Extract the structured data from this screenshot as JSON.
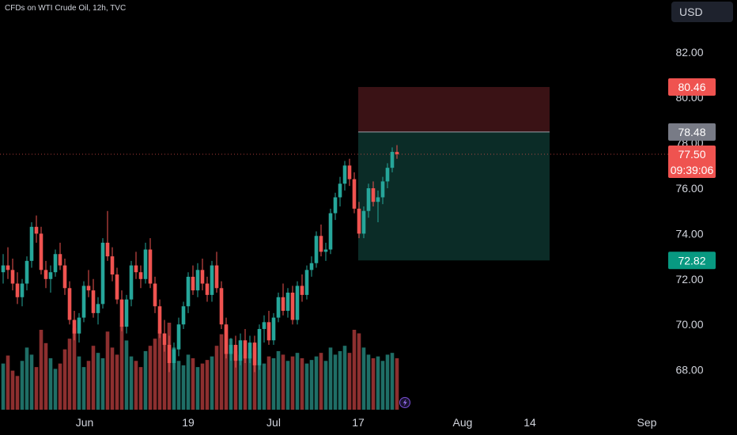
{
  "header": {
    "symbol_title": "CFDs on WTI Crude Oil, 12h, TVC",
    "currency": "USD"
  },
  "colors": {
    "background": "#000000",
    "up": "#26a69a",
    "down": "#ef5350",
    "volume_up": "#1f6e66",
    "volume_down": "#8d2f2f",
    "stop_zone": "#3a1215",
    "target_zone": "#0b2c27",
    "axis_text": "#d1d4dc",
    "entry_tag": "#787b86"
  },
  "chart_data": {
    "type": "candlestick",
    "y_axis": {
      "ticks": [
        "82.00",
        "80.00",
        "78.00",
        "76.00",
        "74.00",
        "72.00",
        "70.00",
        "68.00"
      ],
      "range": [
        66.6,
        84.4
      ]
    },
    "x_axis": {
      "ticks": [
        "Jun",
        "19",
        "Jul",
        "17",
        "Aug",
        "14",
        "Sep"
      ]
    },
    "price_labels": {
      "stop_loss": "80.46",
      "entry": "78.48",
      "last_price": "77.50",
      "countdown": "09:39:06",
      "take_profit": "72.82"
    },
    "position": {
      "stop_loss": 80.46,
      "entry": 78.48,
      "take_profit": 72.82,
      "last_price": 77.5
    },
    "candles": [
      [
        72.3,
        73.1,
        71.8,
        72.6
      ],
      [
        72.6,
        73.4,
        72.0,
        72.4
      ],
      [
        72.4,
        72.9,
        71.5,
        71.8
      ],
      [
        71.8,
        72.3,
        70.9,
        71.2
      ],
      [
        71.2,
        72.0,
        70.8,
        71.8
      ],
      [
        71.8,
        73.0,
        71.5,
        72.8
      ],
      [
        72.8,
        74.5,
        72.5,
        74.3
      ],
      [
        74.3,
        74.8,
        73.6,
        74.0
      ],
      [
        74.0,
        74.3,
        72.2,
        72.4
      ],
      [
        72.4,
        72.8,
        71.6,
        72.0
      ],
      [
        72.0,
        72.6,
        71.4,
        72.3
      ],
      [
        72.3,
        73.3,
        72.1,
        73.1
      ],
      [
        73.1,
        73.6,
        72.4,
        72.6
      ],
      [
        72.6,
        72.9,
        71.3,
        71.6
      ],
      [
        71.6,
        71.9,
        70.0,
        70.2
      ],
      [
        70.2,
        70.6,
        69.3,
        69.6
      ],
      [
        69.6,
        70.5,
        69.2,
        70.3
      ],
      [
        70.3,
        71.9,
        70.1,
        71.7
      ],
      [
        71.7,
        72.4,
        71.2,
        71.5
      ],
      [
        71.5,
        72.0,
        70.3,
        70.5
      ],
      [
        70.5,
        71.2,
        70.0,
        70.9
      ],
      [
        70.9,
        73.8,
        70.7,
        73.6
      ],
      [
        73.6,
        75.0,
        72.8,
        73.0
      ],
      [
        73.0,
        73.4,
        71.9,
        72.2
      ],
      [
        72.2,
        72.5,
        70.9,
        71.1
      ],
      [
        71.1,
        71.5,
        69.7,
        69.9
      ],
      [
        69.9,
        71.3,
        69.6,
        71.1
      ],
      [
        71.1,
        72.8,
        70.8,
        72.6
      ],
      [
        72.6,
        73.2,
        72.0,
        72.3
      ],
      [
        72.3,
        72.6,
        71.6,
        72.0
      ],
      [
        72.0,
        73.6,
        71.8,
        73.3
      ],
      [
        73.3,
        73.8,
        71.6,
        71.8
      ],
      [
        71.8,
        72.1,
        70.5,
        70.8
      ],
      [
        70.8,
        71.1,
        69.4,
        69.6
      ],
      [
        69.6,
        70.2,
        68.8,
        69.1
      ],
      [
        69.1,
        69.5,
        67.9,
        68.3
      ],
      [
        68.3,
        69.2,
        68.0,
        68.9
      ],
      [
        68.9,
        70.3,
        68.6,
        70.0
      ],
      [
        70.0,
        71.0,
        69.8,
        70.8
      ],
      [
        70.8,
        72.3,
        70.5,
        72.1
      ],
      [
        72.1,
        72.6,
        71.3,
        71.5
      ],
      [
        71.5,
        72.7,
        71.2,
        72.4
      ],
      [
        72.4,
        72.9,
        71.5,
        71.8
      ],
      [
        71.8,
        72.1,
        71.0,
        71.3
      ],
      [
        71.3,
        72.8,
        71.0,
        72.6
      ],
      [
        72.6,
        73.2,
        71.4,
        71.6
      ],
      [
        71.6,
        71.9,
        69.8,
        70.0
      ],
      [
        70.0,
        70.3,
        68.5,
        68.7
      ],
      [
        68.7,
        69.4,
        68.4,
        69.1
      ],
      [
        69.1,
        69.5,
        68.1,
        68.4
      ],
      [
        68.4,
        69.6,
        68.2,
        69.3
      ],
      [
        69.3,
        69.8,
        68.3,
        68.5
      ],
      [
        68.5,
        69.5,
        68.3,
        69.2
      ],
      [
        69.2,
        69.5,
        67.9,
        68.2
      ],
      [
        68.2,
        70.0,
        68.0,
        69.8
      ],
      [
        69.8,
        70.4,
        69.2,
        70.1
      ],
      [
        70.1,
        70.6,
        69.1,
        69.3
      ],
      [
        69.3,
        70.5,
        69.1,
        70.3
      ],
      [
        70.3,
        71.4,
        70.1,
        71.2
      ],
      [
        71.2,
        71.8,
        70.4,
        70.6
      ],
      [
        70.6,
        71.6,
        70.3,
        71.4
      ],
      [
        71.4,
        71.7,
        70.0,
        70.2
      ],
      [
        70.2,
        71.9,
        70.0,
        71.7
      ],
      [
        71.7,
        72.2,
        71.0,
        71.3
      ],
      [
        71.3,
        72.6,
        71.1,
        72.4
      ],
      [
        72.4,
        73.0,
        72.1,
        72.7
      ],
      [
        72.7,
        74.1,
        72.5,
        73.9
      ],
      [
        73.9,
        74.4,
        73.0,
        73.2
      ],
      [
        73.2,
        73.6,
        72.8,
        73.3
      ],
      [
        73.3,
        75.1,
        73.1,
        74.9
      ],
      [
        74.9,
        75.8,
        74.6,
        75.6
      ],
      [
        75.6,
        76.5,
        75.2,
        76.2
      ],
      [
        76.2,
        77.2,
        75.9,
        77.0
      ],
      [
        77.0,
        77.3,
        76.1,
        76.4
      ],
      [
        76.4,
        76.7,
        74.9,
        75.1
      ],
      [
        75.1,
        75.4,
        73.8,
        74.0
      ],
      [
        74.0,
        75.2,
        73.8,
        75.0
      ],
      [
        75.0,
        76.2,
        74.7,
        76.0
      ],
      [
        76.0,
        76.3,
        75.2,
        75.4
      ],
      [
        75.4,
        75.9,
        74.5,
        75.6
      ],
      [
        75.6,
        76.5,
        75.3,
        76.3
      ],
      [
        76.3,
        77.1,
        76.0,
        76.9
      ],
      [
        76.9,
        77.8,
        76.7,
        77.6
      ],
      [
        77.6,
        77.9,
        77.3,
        77.5
      ]
    ],
    "volume": [
      52,
      61,
      44,
      38,
      55,
      70,
      62,
      48,
      90,
      75,
      58,
      46,
      52,
      68,
      80,
      92,
      60,
      48,
      55,
      72,
      64,
      58,
      88,
      70,
      62,
      95,
      78,
      60,
      55,
      48,
      66,
      72,
      80,
      90,
      86,
      98,
      70,
      55,
      50,
      62,
      58,
      48,
      52,
      56,
      60,
      72,
      85,
      94,
      80,
      66,
      62,
      58,
      64,
      70,
      56,
      52,
      60,
      58,
      66,
      62,
      55,
      60,
      64,
      58,
      52,
      56,
      60,
      64,
      55,
      70,
      62,
      66,
      72,
      64,
      90,
      86,
      70,
      62,
      58,
      60,
      55,
      62,
      64,
      58
    ]
  }
}
